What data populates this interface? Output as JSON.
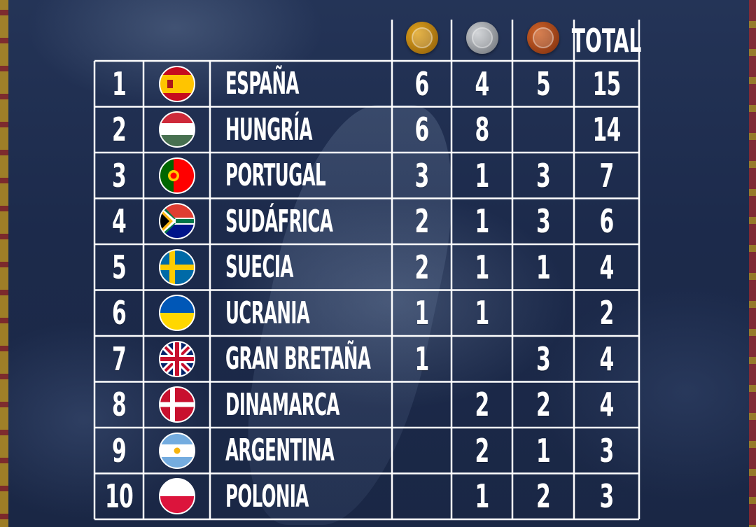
{
  "header": {
    "total_label": "TOTAL",
    "medal_icons": [
      "gold-medal-icon",
      "silver-medal-icon",
      "bronze-medal-icon"
    ]
  },
  "colors": {
    "background": "#1b2a4a",
    "lines": "#ffffff",
    "gold": "#e0a31e",
    "silver": "#c9ccd0",
    "bronze": "#d0642a"
  },
  "rows": [
    {
      "rank": "1",
      "country": "ESPAÑA",
      "flag": "spain-flag-icon",
      "gold": "6",
      "silver": "4",
      "bronze": "5",
      "total": "15"
    },
    {
      "rank": "2",
      "country": "HUNGRÍA",
      "flag": "hungary-flag-icon",
      "gold": "6",
      "silver": "8",
      "bronze": "",
      "total": "14"
    },
    {
      "rank": "3",
      "country": "PORTUGAL",
      "flag": "portugal-flag-icon",
      "gold": "3",
      "silver": "1",
      "bronze": "3",
      "total": "7"
    },
    {
      "rank": "4",
      "country": "SUDÁFRICA",
      "flag": "south-africa-flag-icon",
      "gold": "2",
      "silver": "1",
      "bronze": "3",
      "total": "6"
    },
    {
      "rank": "5",
      "country": "SUECIA",
      "flag": "sweden-flag-icon",
      "gold": "2",
      "silver": "1",
      "bronze": "1",
      "total": "4"
    },
    {
      "rank": "6",
      "country": "UCRANIA",
      "flag": "ukraine-flag-icon",
      "gold": "1",
      "silver": "1",
      "bronze": "",
      "total": "2"
    },
    {
      "rank": "7",
      "country": "GRAN BRETAÑA",
      "flag": "great-britain-flag-icon",
      "gold": "1",
      "silver": "",
      "bronze": "3",
      "total": "4"
    },
    {
      "rank": "8",
      "country": "DINAMARCA",
      "flag": "denmark-flag-icon",
      "gold": "",
      "silver": "2",
      "bronze": "2",
      "total": "4"
    },
    {
      "rank": "9",
      "country": "ARGENTINA",
      "flag": "argentina-flag-icon",
      "gold": "",
      "silver": "2",
      "bronze": "1",
      "total": "3"
    },
    {
      "rank": "10",
      "country": "POLONIA",
      "flag": "poland-flag-icon",
      "gold": "",
      "silver": "1",
      "bronze": "2",
      "total": "3"
    }
  ]
}
